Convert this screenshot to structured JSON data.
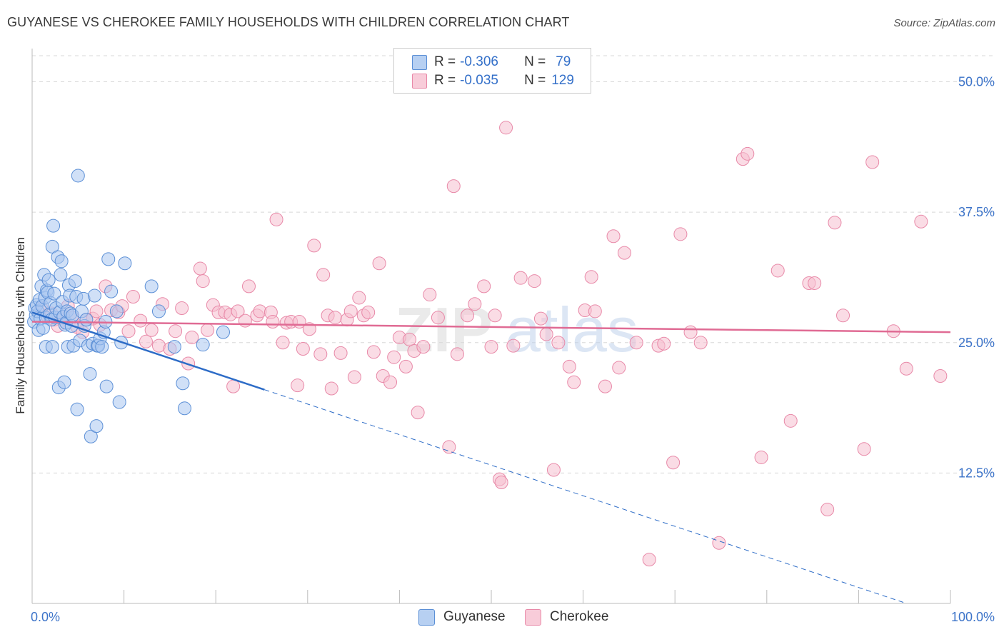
{
  "header": {
    "title": "GUYANESE VS CHEROKEE FAMILY HOUSEHOLDS WITH CHILDREN CORRELATION CHART",
    "source": "Source: ZipAtlas.com"
  },
  "legend": {
    "items": [
      {
        "r_label": "R =",
        "r_value": "-0.306",
        "n_label": "N =",
        "n_value": "79"
      },
      {
        "r_label": "R =",
        "r_value": "-0.035",
        "n_label": "N =",
        "n_value": "129"
      }
    ]
  },
  "bottom_legend": {
    "guyanese": "Guyanese",
    "cherokee": "Cherokee"
  },
  "watermark": {
    "zip": "ZIP",
    "atlas": "atlas"
  },
  "colors": {
    "guyanese_fill": "#a9c7f0",
    "guyanese_stroke": "#5b8fd6",
    "guyanese_line": "#2d6cc7",
    "cherokee_fill": "#f6bfd0",
    "cherokee_stroke": "#e889a8",
    "cherokee_line": "#e06b94",
    "axis_text": "#3d74c9",
    "grid": "#d8d8d8"
  },
  "chart_data": {
    "type": "scatter",
    "title": "GUYANESE VS CHEROKEE FAMILY HOUSEHOLDS WITH CHILDREN CORRELATION CHART",
    "xlabel": "",
    "ylabel": "Family Households with Children",
    "xlim": [
      0,
      100
    ],
    "ylim": [
      0,
      52.5
    ],
    "x_tick_labels": [
      "0.0%",
      "100.0%"
    ],
    "y_ticks": [
      12.5,
      25.0,
      37.5,
      50.0
    ],
    "y_tick_labels": [
      "12.5%",
      "25.0%",
      "37.5%",
      "50.0%"
    ],
    "grid": true,
    "series": [
      {
        "name": "Guyanese",
        "R": -0.306,
        "N": 79,
        "trend": {
          "x0": 0,
          "y0": 27.9,
          "x1": 100,
          "y1": -1.4,
          "solid_until_x": 25.3
        },
        "points": [
          [
            0.2,
            27.0
          ],
          [
            0.3,
            28.3
          ],
          [
            0.4,
            27.6
          ],
          [
            0.5,
            28.6
          ],
          [
            0.6,
            28.0
          ],
          [
            0.7,
            26.2
          ],
          [
            0.8,
            29.1
          ],
          [
            0.9,
            27.3
          ],
          [
            1.0,
            30.4
          ],
          [
            1.1,
            28.5
          ],
          [
            1.2,
            26.4
          ],
          [
            1.3,
            31.5
          ],
          [
            1.4,
            29.3
          ],
          [
            1.5,
            27.4
          ],
          [
            1.5,
            24.6
          ],
          [
            1.6,
            30.0
          ],
          [
            1.7,
            29.8
          ],
          [
            1.8,
            31.0
          ],
          [
            1.9,
            27.7
          ],
          [
            2.0,
            28.8
          ],
          [
            2.1,
            27.2
          ],
          [
            2.2,
            34.2
          ],
          [
            2.2,
            24.6
          ],
          [
            2.3,
            36.2
          ],
          [
            2.4,
            29.7
          ],
          [
            2.5,
            27.4
          ],
          [
            2.6,
            28.3
          ],
          [
            2.8,
            33.2
          ],
          [
            2.9,
            20.7
          ],
          [
            3.0,
            27.9
          ],
          [
            3.1,
            31.5
          ],
          [
            3.2,
            32.8
          ],
          [
            3.3,
            28.9
          ],
          [
            3.4,
            27.5
          ],
          [
            3.5,
            21.2
          ],
          [
            3.6,
            26.7
          ],
          [
            3.7,
            26.9
          ],
          [
            3.8,
            28.0
          ],
          [
            3.9,
            24.6
          ],
          [
            4.0,
            30.5
          ],
          [
            4.1,
            29.5
          ],
          [
            4.2,
            27.8
          ],
          [
            4.3,
            26.6
          ],
          [
            4.4,
            27.6
          ],
          [
            4.5,
            24.7
          ],
          [
            4.7,
            30.9
          ],
          [
            4.8,
            29.4
          ],
          [
            4.9,
            18.6
          ],
          [
            5.0,
            41.0
          ],
          [
            5.2,
            25.2
          ],
          [
            5.4,
            28.0
          ],
          [
            5.6,
            29.2
          ],
          [
            5.7,
            26.6
          ],
          [
            5.9,
            27.2
          ],
          [
            6.1,
            24.7
          ],
          [
            6.3,
            22.0
          ],
          [
            6.4,
            16.0
          ],
          [
            6.6,
            24.9
          ],
          [
            6.8,
            29.5
          ],
          [
            7.0,
            17.0
          ],
          [
            7.1,
            24.7
          ],
          [
            7.2,
            24.7
          ],
          [
            7.4,
            25.4
          ],
          [
            7.6,
            24.6
          ],
          [
            7.8,
            26.0
          ],
          [
            8.0,
            27.0
          ],
          [
            8.1,
            20.8
          ],
          [
            8.3,
            33.0
          ],
          [
            8.6,
            29.9
          ],
          [
            9.2,
            28.0
          ],
          [
            9.5,
            19.3
          ],
          [
            9.7,
            25.0
          ],
          [
            10.1,
            32.6
          ],
          [
            13.0,
            30.4
          ],
          [
            13.8,
            28.0
          ],
          [
            15.5,
            24.6
          ],
          [
            16.4,
            21.1
          ],
          [
            16.6,
            18.7
          ],
          [
            18.6,
            24.8
          ],
          [
            20.8,
            26.0
          ]
        ]
      },
      {
        "name": "Cherokee",
        "R": -0.035,
        "N": 129,
        "trend": {
          "x0": 0,
          "y0": 27.0,
          "x1": 100,
          "y1": 26.0
        },
        "points": [
          [
            1.0,
            28.3
          ],
          [
            1.6,
            27.6
          ],
          [
            2.1,
            27.8
          ],
          [
            2.4,
            27.2
          ],
          [
            2.8,
            26.6
          ],
          [
            3.3,
            27.4
          ],
          [
            3.9,
            28.5
          ],
          [
            4.4,
            27.4
          ],
          [
            4.9,
            26.5
          ],
          [
            5.5,
            26.0
          ],
          [
            5.9,
            27.2
          ],
          [
            6.6,
            27.3
          ],
          [
            7.0,
            28.0
          ],
          [
            7.4,
            26.7
          ],
          [
            8.0,
            30.4
          ],
          [
            8.6,
            28.1
          ],
          [
            9.4,
            27.9
          ],
          [
            9.8,
            28.5
          ],
          [
            10.5,
            26.1
          ],
          [
            11.0,
            29.4
          ],
          [
            11.8,
            27.1
          ],
          [
            12.4,
            25.1
          ],
          [
            13.0,
            26.2
          ],
          [
            13.8,
            24.7
          ],
          [
            14.2,
            28.7
          ],
          [
            15.0,
            24.4
          ],
          [
            15.6,
            26.1
          ],
          [
            16.3,
            28.3
          ],
          [
            17.0,
            23.0
          ],
          [
            17.4,
            25.5
          ],
          [
            18.3,
            32.1
          ],
          [
            18.6,
            30.9
          ],
          [
            19.1,
            26.2
          ],
          [
            19.7,
            28.6
          ],
          [
            20.3,
            27.9
          ],
          [
            21.0,
            27.9
          ],
          [
            21.6,
            27.7
          ],
          [
            21.9,
            20.8
          ],
          [
            22.4,
            28.0
          ],
          [
            23.2,
            27.1
          ],
          [
            23.6,
            30.4
          ],
          [
            24.5,
            27.6
          ],
          [
            24.8,
            28.0
          ],
          [
            26.0,
            27.9
          ],
          [
            26.2,
            27.0
          ],
          [
            26.6,
            36.8
          ],
          [
            27.3,
            25.0
          ],
          [
            27.7,
            26.9
          ],
          [
            28.2,
            27.0
          ],
          [
            28.9,
            20.9
          ],
          [
            29.1,
            27.0
          ],
          [
            29.5,
            24.4
          ],
          [
            30.2,
            26.3
          ],
          [
            30.7,
            34.3
          ],
          [
            31.4,
            23.9
          ],
          [
            31.7,
            31.5
          ],
          [
            32.2,
            27.6
          ],
          [
            32.6,
            20.6
          ],
          [
            33.0,
            27.4
          ],
          [
            33.6,
            24.0
          ],
          [
            34.3,
            27.2
          ],
          [
            34.7,
            28.0
          ],
          [
            35.1,
            21.7
          ],
          [
            35.6,
            29.3
          ],
          [
            36.1,
            27.6
          ],
          [
            36.6,
            27.9
          ],
          [
            37.2,
            24.1
          ],
          [
            37.8,
            32.6
          ],
          [
            38.2,
            21.8
          ],
          [
            39.0,
            21.2
          ],
          [
            39.4,
            23.6
          ],
          [
            40.0,
            25.5
          ],
          [
            40.7,
            22.7
          ],
          [
            41.1,
            25.3
          ],
          [
            41.6,
            24.2
          ],
          [
            42.0,
            18.3
          ],
          [
            42.6,
            24.6
          ],
          [
            43.3,
            29.6
          ],
          [
            44.2,
            27.4
          ],
          [
            45.4,
            15.0
          ],
          [
            45.9,
            40.0
          ],
          [
            46.3,
            23.9
          ],
          [
            47.4,
            27.6
          ],
          [
            48.2,
            28.7
          ],
          [
            49.2,
            30.4
          ],
          [
            50.0,
            24.6
          ],
          [
            50.4,
            27.6
          ],
          [
            50.9,
            11.9
          ],
          [
            51.1,
            11.6
          ],
          [
            51.6,
            45.6
          ],
          [
            52.4,
            24.7
          ],
          [
            53.2,
            31.2
          ],
          [
            54.7,
            30.9
          ],
          [
            55.4,
            27.3
          ],
          [
            56.0,
            25.8
          ],
          [
            56.8,
            12.8
          ],
          [
            57.3,
            25.0
          ],
          [
            58.5,
            22.7
          ],
          [
            59.0,
            21.2
          ],
          [
            60.2,
            28.1
          ],
          [
            60.9,
            31.3
          ],
          [
            61.3,
            28.0
          ],
          [
            62.4,
            20.8
          ],
          [
            63.3,
            35.2
          ],
          [
            63.9,
            22.6
          ],
          [
            64.5,
            33.6
          ],
          [
            65.8,
            25.0
          ],
          [
            67.2,
            4.2
          ],
          [
            68.2,
            24.7
          ],
          [
            68.8,
            24.9
          ],
          [
            69.8,
            13.5
          ],
          [
            70.6,
            35.4
          ],
          [
            71.7,
            26.0
          ],
          [
            72.8,
            25.0
          ],
          [
            74.8,
            5.8
          ],
          [
            77.4,
            42.6
          ],
          [
            77.9,
            43.1
          ],
          [
            79.4,
            14.0
          ],
          [
            81.2,
            31.9
          ],
          [
            82.6,
            17.5
          ],
          [
            84.6,
            30.7
          ],
          [
            85.2,
            30.7
          ],
          [
            86.6,
            9.0
          ],
          [
            87.4,
            36.5
          ],
          [
            88.3,
            27.6
          ],
          [
            90.6,
            14.8
          ],
          [
            91.5,
            42.3
          ],
          [
            93.8,
            26.1
          ],
          [
            95.2,
            22.5
          ],
          [
            96.8,
            36.6
          ],
          [
            98.9,
            21.8
          ]
        ]
      }
    ]
  }
}
